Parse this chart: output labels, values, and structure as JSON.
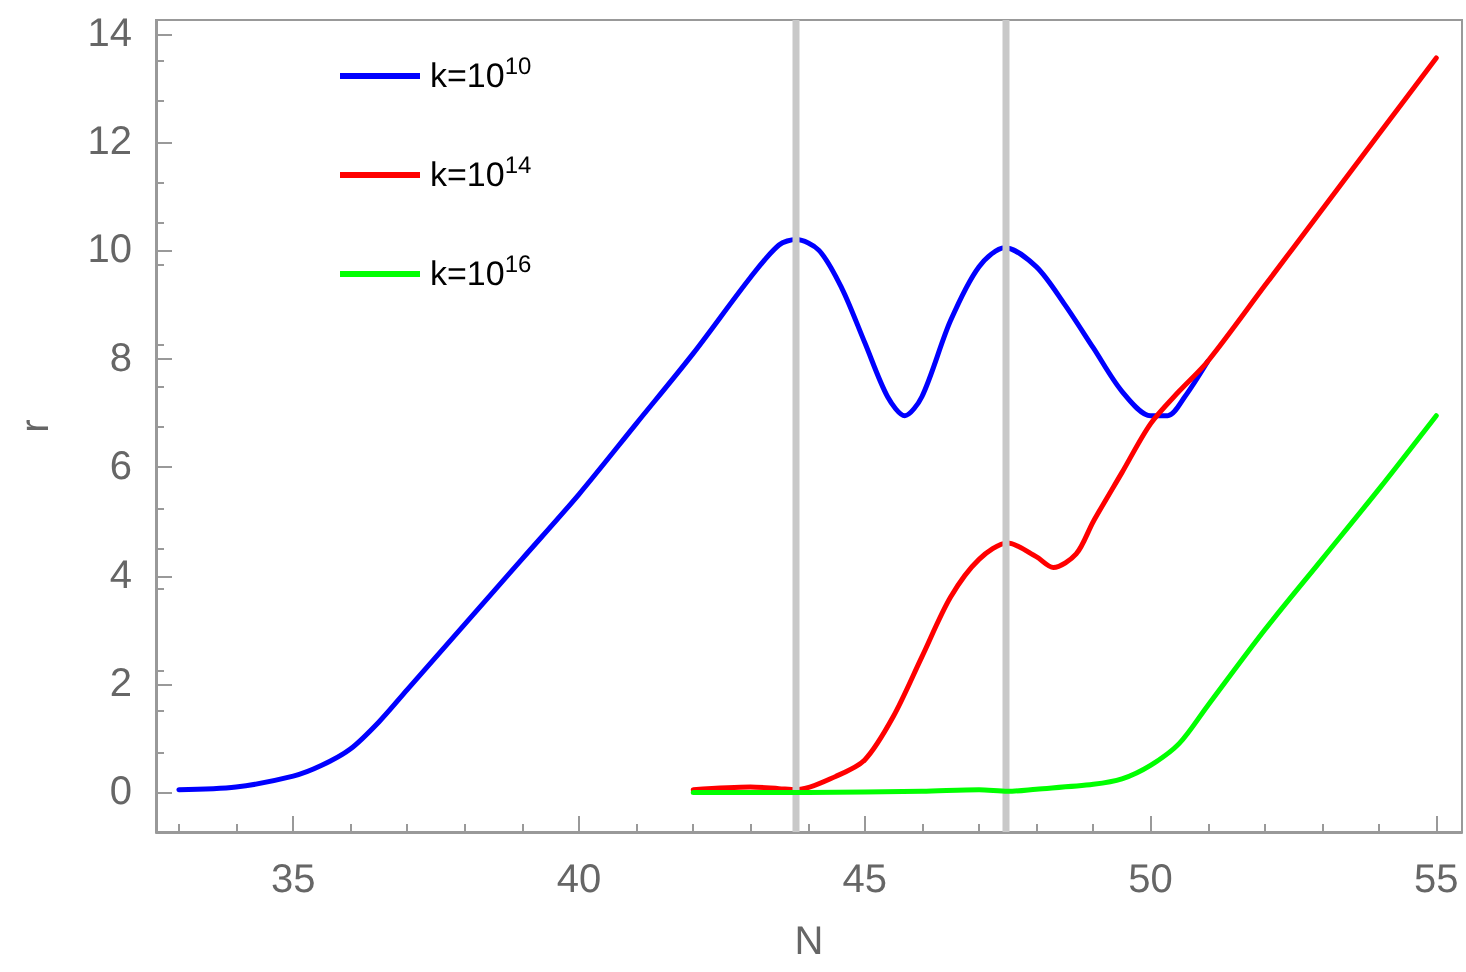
{
  "chart_data": {
    "type": "line",
    "xlabel": "N",
    "ylabel": "r",
    "xlim": [
      32.6,
      55.45
    ],
    "xticks": [
      35,
      40,
      45,
      50,
      55
    ],
    "ylim": [
      -0.73,
      14.25
    ],
    "yticks": [
      0,
      2,
      4,
      6,
      8,
      10,
      12,
      14
    ],
    "grid": false,
    "legend": "top left",
    "marker": "none",
    "line_style": "solid",
    "ref_lines": [
      {
        "axis": "x",
        "value": 43.8,
        "color": "#c8c8c8"
      },
      {
        "axis": "x",
        "value": 47.45,
        "color": "#c8c8c8"
      }
    ],
    "series": [
      {
        "name": "k=10$^{10}$",
        "color": "#0000ff",
        "x": [
          33,
          34,
          35,
          35.5,
          36,
          36.5,
          37,
          38,
          39,
          40,
          41,
          42,
          43,
          43.5,
          43.8,
          44.2,
          44.6,
          45,
          45.4,
          45.7,
          46,
          46.5,
          47,
          47.45,
          48,
          48.5,
          49,
          49.5,
          50,
          50.3,
          50.6,
          51
        ],
        "values": [
          0.05,
          0.1,
          0.3,
          0.5,
          0.8,
          1.3,
          1.9,
          3.1,
          4.3,
          5.5,
          6.8,
          8.1,
          9.5,
          10.1,
          10.2,
          10.0,
          9.3,
          8.3,
          7.3,
          6.95,
          7.3,
          8.7,
          9.7,
          10.05,
          9.7,
          9.0,
          8.2,
          7.4,
          6.95,
          6.95,
          7.3,
          7.95
        ]
      },
      {
        "name": "k=10$^{14}$",
        "color": "#ff0000",
        "x": [
          42,
          43,
          43.5,
          43.8,
          44.5,
          45,
          45.5,
          46,
          46.5,
          47,
          47.5,
          48,
          48.3,
          48.7,
          49,
          49.5,
          50,
          50.5,
          51,
          52,
          53,
          54,
          55
        ],
        "values": [
          0.05,
          0.1,
          0.07,
          0.05,
          0.3,
          0.6,
          1.4,
          2.5,
          3.6,
          4.3,
          4.6,
          4.35,
          4.15,
          4.4,
          5.0,
          5.9,
          6.8,
          7.4,
          7.95,
          9.35,
          10.75,
          12.15,
          13.55
        ]
      },
      {
        "name": "k=10$^{16}$",
        "color": "#00ff00",
        "x": [
          42,
          44,
          46,
          47,
          47.5,
          48,
          49,
          49.5,
          50,
          50.5,
          51,
          52,
          53,
          54,
          55
        ],
        "values": [
          0.0,
          0.0,
          0.02,
          0.05,
          0.02,
          0.06,
          0.15,
          0.25,
          0.5,
          0.9,
          1.6,
          3.0,
          4.3,
          5.6,
          6.95
        ]
      }
    ]
  }
}
